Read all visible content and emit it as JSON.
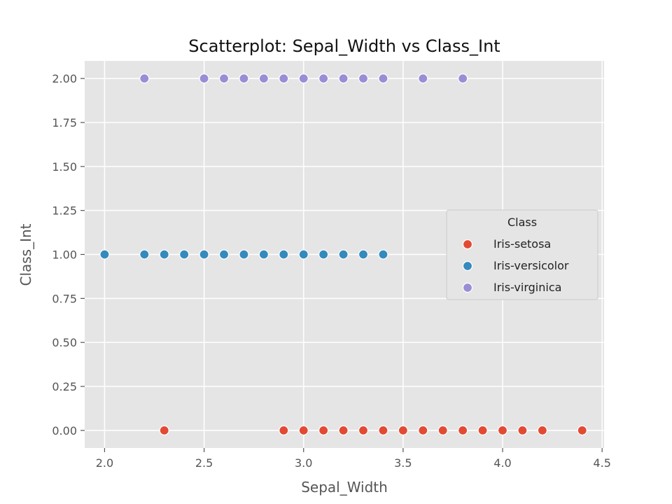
{
  "chart_data": {
    "type": "scatter",
    "title": "Scatterplot: Sepal_Width vs Class_Int",
    "xlabel": "Sepal_Width",
    "ylabel": "Class_Int",
    "xlim": [
      1.9,
      4.51
    ],
    "ylim": [
      -0.1,
      2.1
    ],
    "x_ticks": [
      "2.0",
      "2.5",
      "3.0",
      "3.5",
      "4.0",
      "4.5"
    ],
    "y_ticks": [
      "0.00",
      "0.25",
      "0.50",
      "0.75",
      "1.00",
      "1.25",
      "1.50",
      "1.75",
      "2.00"
    ],
    "grid": true,
    "legend": {
      "title": "Class",
      "position": "center-right"
    },
    "colors": {
      "background": "#e5e5e5",
      "grid": "#ffffff",
      "Iris-setosa": "#e24a33",
      "Iris-versicolor": "#348abd",
      "Iris-virginica": "#988ed5"
    },
    "series": [
      {
        "name": "Iris-setosa",
        "y": 0,
        "x": [
          2.3,
          2.9,
          3.0,
          3.1,
          3.2,
          3.3,
          3.4,
          3.5,
          3.6,
          3.7,
          3.8,
          3.9,
          4.0,
          4.1,
          4.2,
          4.4
        ]
      },
      {
        "name": "Iris-versicolor",
        "y": 1,
        "x": [
          2.0,
          2.2,
          2.3,
          2.4,
          2.5,
          2.6,
          2.7,
          2.8,
          2.9,
          3.0,
          3.1,
          3.2,
          3.3,
          3.4
        ]
      },
      {
        "name": "Iris-virginica",
        "y": 2,
        "x": [
          2.2,
          2.5,
          2.6,
          2.7,
          2.8,
          2.9,
          3.0,
          3.1,
          3.2,
          3.3,
          3.4,
          3.6,
          3.8
        ]
      }
    ]
  }
}
